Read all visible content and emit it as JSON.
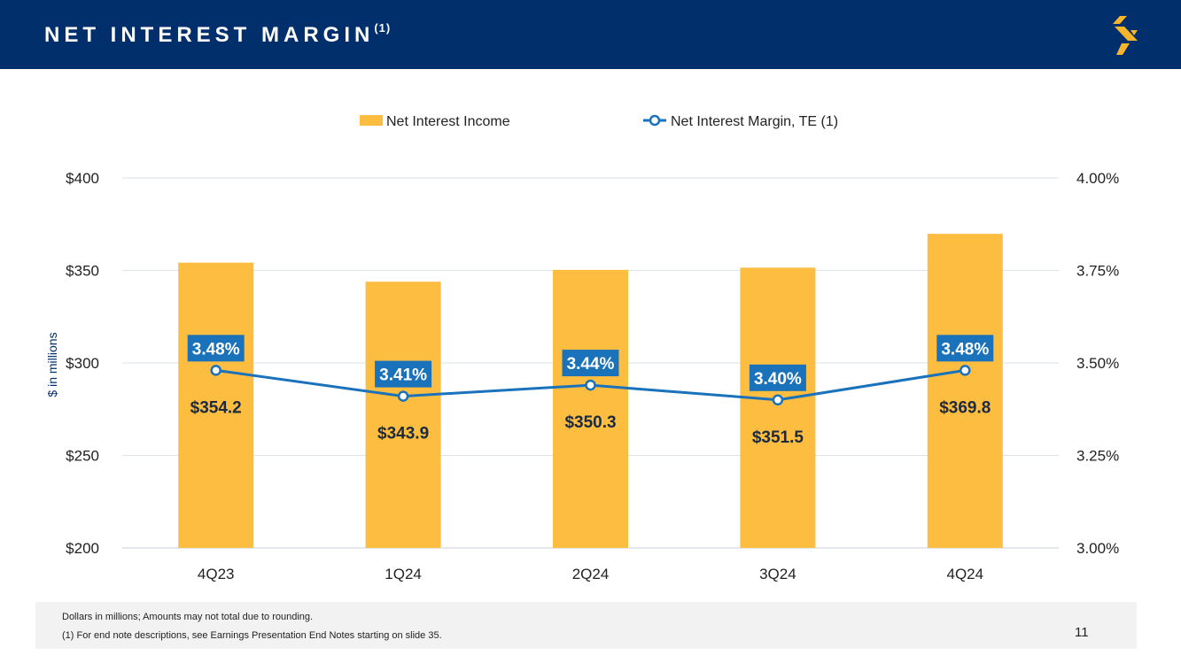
{
  "slide": {
    "title": "NET INTEREST MARGIN",
    "title_sup": "(1)",
    "page_number": "11",
    "footnotes": [
      "Dollars in millions; Amounts may not total due to rounding.",
      "(1)  For end note descriptions, see Earnings Presentation End Notes starting on slide 35."
    ]
  },
  "colors": {
    "header": "#002f6c",
    "bar": "#fdbd41",
    "line": "#1a72bb",
    "label_box": "#1a72bb",
    "logo": "#f7b52b"
  },
  "logo": {
    "icon": "s-logo-icon"
  },
  "chart_data": {
    "type": "bar",
    "categories": [
      "4Q23",
      "1Q24",
      "2Q24",
      "3Q24",
      "4Q24"
    ],
    "series": [
      {
        "name": "Net Interest Income",
        "type": "bar",
        "axis": "left",
        "values": [
          354.2,
          343.9,
          350.3,
          351.5,
          369.8
        ],
        "labels": [
          "$354.2",
          "$343.9",
          "$350.3",
          "$351.5",
          "$369.8"
        ]
      },
      {
        "name": "Net Interest Margin, TE (1)",
        "type": "line",
        "axis": "right",
        "values": [
          3.48,
          3.41,
          3.44,
          3.4,
          3.48
        ],
        "labels": [
          "3.48%",
          "3.41%",
          "3.44%",
          "3.40%",
          "3.48%"
        ]
      }
    ],
    "ylabel": "$ in millions",
    "ylim": [
      200,
      400
    ],
    "yticks": [
      "$200",
      "$250",
      "$300",
      "$350",
      "$400"
    ],
    "y2lim": [
      3.0,
      4.0
    ],
    "y2ticks": [
      "3.00%",
      "3.25%",
      "3.50%",
      "3.75%",
      "4.00%"
    ],
    "legend_position": "top-center",
    "grid": true
  }
}
